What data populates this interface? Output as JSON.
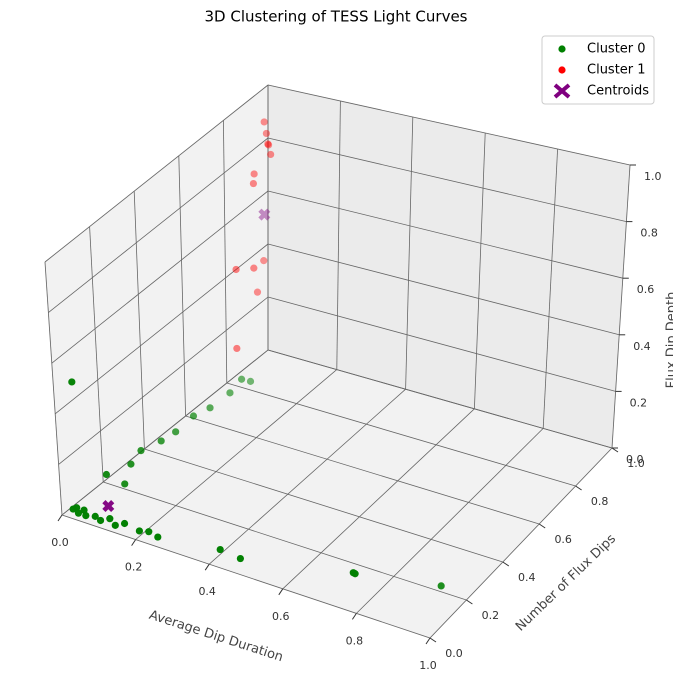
{
  "chart_data": {
    "type": "scatter3d",
    "title": "3D Clustering of TESS Light Curves",
    "xlabel": "Average Dip Duration",
    "ylabel": "Number of Flux Dips",
    "zlabel": "Flux Dip Depth",
    "xlim": [
      0,
      1
    ],
    "ylim": [
      0,
      1
    ],
    "zlim": [
      0,
      1
    ],
    "xticks": [
      {
        "value": 0,
        "label": "0.0"
      },
      0.2,
      0.4,
      0.6,
      0.8,
      {
        "value": 1,
        "label": "1.0"
      }
    ],
    "yticks": [
      {
        "value": 0,
        "label": "0.0"
      },
      0.2,
      0.4,
      0.6,
      0.8,
      {
        "value": 1,
        "label": "1.0"
      }
    ],
    "zticks": [
      {
        "value": 0,
        "label": "0.0"
      },
      0.2,
      0.4,
      0.6,
      0.8,
      {
        "value": 1,
        "label": "1.0"
      }
    ],
    "grid": true,
    "legend": "upper right",
    "series": [
      {
        "name": "Cluster 0",
        "color": "#008000",
        "marker": "circle",
        "x": [
          0.02,
          0.03,
          0.04,
          0.05,
          0.06,
          0.08,
          0.1,
          0.12,
          0.14,
          0.16,
          0.2,
          0.22,
          0.25,
          0.42,
          0.48,
          0.78,
          0.78,
          0.93,
          0.02,
          0.04,
          0.05,
          0.05,
          0.06,
          0.06,
          0.07,
          0.07,
          0.08,
          0.09,
          0.08,
          0.06
        ],
        "y": [
          0.02,
          0.02,
          0.01,
          0.02,
          0.01,
          0.02,
          0.01,
          0.02,
          0.01,
          0.02,
          0.02,
          0.03,
          0.02,
          0.02,
          0.01,
          0.02,
          0.03,
          0.2,
          0.05,
          0.15,
          0.25,
          0.3,
          0.38,
          0.45,
          0.52,
          0.6,
          0.68,
          0.72,
          0.78,
          0.2
        ],
        "z": [
          0.02,
          0.03,
          0.02,
          0.03,
          0.02,
          0.02,
          0.02,
          0.03,
          0.02,
          0.03,
          0.02,
          0.02,
          0.02,
          0.05,
          0.05,
          0.12,
          0.11,
          0.02,
          0.5,
          0.08,
          0.06,
          0.08,
          0.07,
          0.06,
          0.08,
          0.06,
          0.07,
          0.1,
          0.05,
          0.02
        ]
      },
      {
        "name": "Cluster 1",
        "color": "#ff0000",
        "marker": "circle",
        "x": [
          0.02,
          0.02,
          0.03,
          0.02,
          0.05,
          0.02,
          0.01,
          0,
          0.02,
          0,
          0,
          0
        ],
        "y": [
          0.95,
          0.96,
          0.95,
          0.97,
          0.93,
          0.9,
          0.92,
          0.85,
          0.9,
          0.98,
          0.95,
          0.85
        ],
        "z": [
          0.9,
          0.85,
          0.82,
          0.8,
          0.8,
          0.7,
          0.72,
          0.4,
          0.38,
          0.35,
          0.25,
          0.1
        ]
      },
      {
        "name": "Centroids",
        "color": "#800080",
        "marker": "x",
        "x": [
          0.1,
          0.02
        ],
        "y": [
          0.05,
          0.95
        ],
        "z": [
          0.05,
          0.55
        ]
      }
    ]
  }
}
